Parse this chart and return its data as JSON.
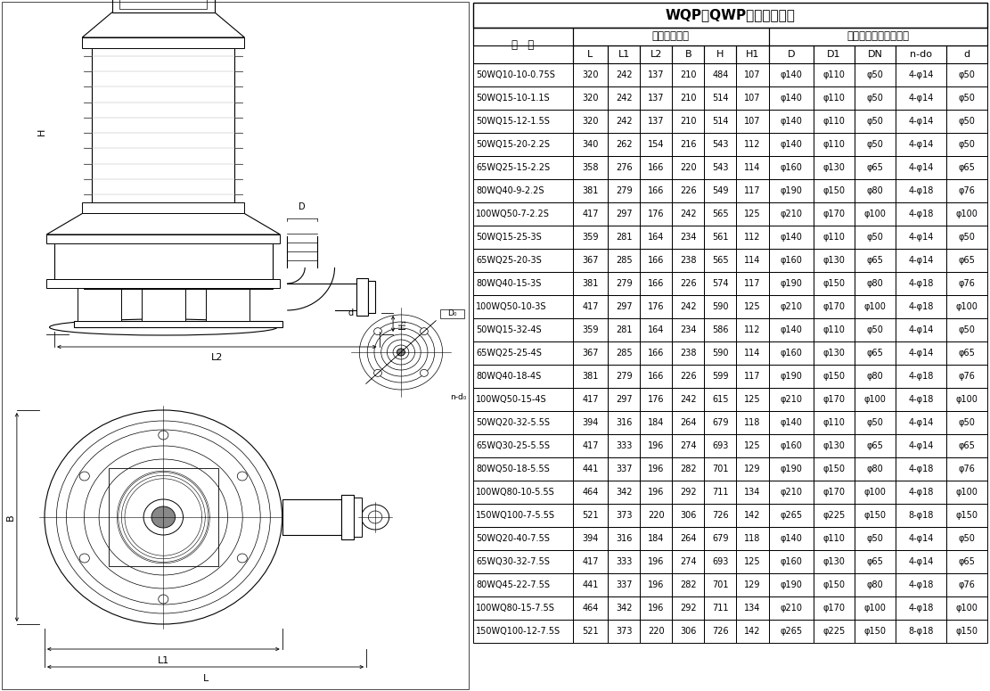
{
  "title": "WQP（QWP）安装尺寸表",
  "header1": "外形安装尺寸",
  "header2": "泵出口法兰及连接尺寸",
  "col_type": "型   号",
  "cols1": [
    "L",
    "L1",
    "L2",
    "B",
    "H",
    "H1"
  ],
  "cols2": [
    "D",
    "D1",
    "DN",
    "n-do",
    "d"
  ],
  "rows": [
    [
      "50WQ10-10-0.75S",
      "320",
      "242",
      "137",
      "210",
      "484",
      "107",
      "φ140",
      "φ110",
      "φ50",
      "4-φ14",
      "φ50"
    ],
    [
      "50WQ15-10-1.1S",
      "320",
      "242",
      "137",
      "210",
      "514",
      "107",
      "φ140",
      "φ110",
      "φ50",
      "4-φ14",
      "φ50"
    ],
    [
      "50WQ15-12-1.5S",
      "320",
      "242",
      "137",
      "210",
      "514",
      "107",
      "φ140",
      "φ110",
      "φ50",
      "4-φ14",
      "φ50"
    ],
    [
      "50WQ15-20-2.2S",
      "340",
      "262",
      "154",
      "216",
      "543",
      "112",
      "φ140",
      "φ110",
      "φ50",
      "4-φ14",
      "φ50"
    ],
    [
      "65WQ25-15-2.2S",
      "358",
      "276",
      "166",
      "220",
      "543",
      "114",
      "φ160",
      "φ130",
      "φ65",
      "4-φ14",
      "φ65"
    ],
    [
      "80WQ40-9-2.2S",
      "381",
      "279",
      "166",
      "226",
      "549",
      "117",
      "φ190",
      "φ150",
      "φ80",
      "4-φ18",
      "φ76"
    ],
    [
      "100WQ50-7-2.2S",
      "417",
      "297",
      "176",
      "242",
      "565",
      "125",
      "φ210",
      "φ170",
      "φ100",
      "4-φ18",
      "φ100"
    ],
    [
      "50WQ15-25-3S",
      "359",
      "281",
      "164",
      "234",
      "561",
      "112",
      "φ140",
      "φ110",
      "φ50",
      "4-φ14",
      "φ50"
    ],
    [
      "65WQ25-20-3S",
      "367",
      "285",
      "166",
      "238",
      "565",
      "114",
      "φ160",
      "φ130",
      "φ65",
      "4-φ14",
      "φ65"
    ],
    [
      "80WQ40-15-3S",
      "381",
      "279",
      "166",
      "226",
      "574",
      "117",
      "φ190",
      "φ150",
      "φ80",
      "4-φ18",
      "φ76"
    ],
    [
      "100WQ50-10-3S",
      "417",
      "297",
      "176",
      "242",
      "590",
      "125",
      "φ210",
      "φ170",
      "φ100",
      "4-φ18",
      "φ100"
    ],
    [
      "50WQ15-32-4S",
      "359",
      "281",
      "164",
      "234",
      "586",
      "112",
      "φ140",
      "φ110",
      "φ50",
      "4-φ14",
      "φ50"
    ],
    [
      "65WQ25-25-4S",
      "367",
      "285",
      "166",
      "238",
      "590",
      "114",
      "φ160",
      "φ130",
      "φ65",
      "4-φ14",
      "φ65"
    ],
    [
      "80WQ40-18-4S",
      "381",
      "279",
      "166",
      "226",
      "599",
      "117",
      "φ190",
      "φ150",
      "φ80",
      "4-φ18",
      "φ76"
    ],
    [
      "100WQ50-15-4S",
      "417",
      "297",
      "176",
      "242",
      "615",
      "125",
      "φ210",
      "φ170",
      "φ100",
      "4-φ18",
      "φ100"
    ],
    [
      "50WQ20-32-5.5S",
      "394",
      "316",
      "184",
      "264",
      "679",
      "118",
      "φ140",
      "φ110",
      "φ50",
      "4-φ14",
      "φ50"
    ],
    [
      "65WQ30-25-5.5S",
      "417",
      "333",
      "196",
      "274",
      "693",
      "125",
      "φ160",
      "φ130",
      "φ65",
      "4-φ14",
      "φ65"
    ],
    [
      "80WQ50-18-5.5S",
      "441",
      "337",
      "196",
      "282",
      "701",
      "129",
      "φ190",
      "φ150",
      "φ80",
      "4-φ18",
      "φ76"
    ],
    [
      "100WQ80-10-5.5S",
      "464",
      "342",
      "196",
      "292",
      "711",
      "134",
      "φ210",
      "φ170",
      "φ100",
      "4-φ18",
      "φ100"
    ],
    [
      "150WQ100-7-5.5S",
      "521",
      "373",
      "220",
      "306",
      "726",
      "142",
      "φ265",
      "φ225",
      "φ150",
      "8-φ18",
      "φ150"
    ],
    [
      "50WQ20-40-7.5S",
      "394",
      "316",
      "184",
      "264",
      "679",
      "118",
      "φ140",
      "φ110",
      "φ50",
      "4-φ14",
      "φ50"
    ],
    [
      "65WQ30-32-7.5S",
      "417",
      "333",
      "196",
      "274",
      "693",
      "125",
      "φ160",
      "φ130",
      "φ65",
      "4-φ14",
      "φ65"
    ],
    [
      "80WQ45-22-7.5S",
      "441",
      "337",
      "196",
      "282",
      "701",
      "129",
      "φ190",
      "φ150",
      "φ80",
      "4-φ18",
      "φ76"
    ],
    [
      "100WQ80-15-7.5S",
      "464",
      "342",
      "196",
      "292",
      "711",
      "134",
      "φ210",
      "φ170",
      "φ100",
      "4-φ18",
      "φ100"
    ],
    [
      "150WQ100-12-7.5S",
      "521",
      "373",
      "220",
      "306",
      "726",
      "142",
      "φ265",
      "φ225",
      "φ150",
      "8-φ18",
      "φ150"
    ]
  ],
  "bg_color": "#ffffff",
  "line_color": "#000000"
}
